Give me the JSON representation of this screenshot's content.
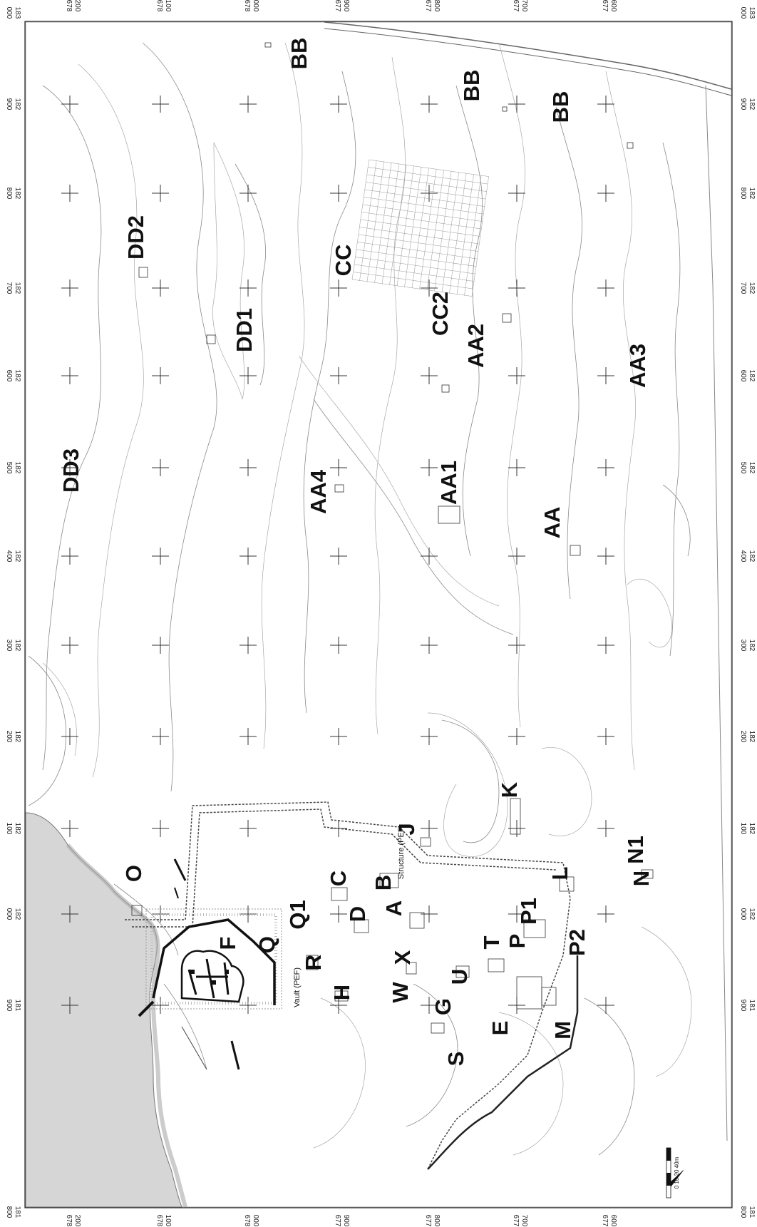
{
  "map": {
    "sheet": "Site plan (rotated)",
    "colors": {
      "sea": "#d6d6d6",
      "contour": "#8a8a8a",
      "wall": "#111111",
      "frame": "#222222"
    },
    "left_ticks": [
      {
        "a": "678",
        "b": "200"
      },
      {
        "a": "678",
        "b": "100"
      },
      {
        "a": "678",
        "b": "000"
      },
      {
        "a": "677",
        "b": "900"
      },
      {
        "a": "677",
        "b": "800"
      },
      {
        "a": "677",
        "b": "700"
      },
      {
        "a": "677",
        "b": "600"
      }
    ],
    "top_ticks": [
      "000\n183",
      "900\n182",
      "800\n182",
      "700\n182",
      "600\n182",
      "500\n182",
      "400\n182",
      "300\n182",
      "200\n182",
      "100\n182",
      "000\n182",
      "900\n181",
      "800\n181"
    ],
    "top_tick_lines": [
      {
        "a": "000",
        "b": "183"
      },
      {
        "a": "900",
        "b": "182"
      },
      {
        "a": "800",
        "b": "182"
      },
      {
        "a": "700",
        "b": "182"
      },
      {
        "a": "600",
        "b": "182"
      },
      {
        "a": "500",
        "b": "182"
      },
      {
        "a": "400",
        "b": "182"
      },
      {
        "a": "300",
        "b": "182"
      },
      {
        "a": "200",
        "b": "182"
      },
      {
        "a": "100",
        "b": "182"
      },
      {
        "a": "000",
        "b": "182"
      },
      {
        "a": "900",
        "b": "181"
      },
      {
        "a": "800",
        "b": "181"
      }
    ],
    "area_labels": {
      "BB_a": "BB",
      "BB_b": "BB",
      "BB_c": "BB",
      "DD2": "DD2",
      "DD1": "DD1",
      "DD3": "DD3",
      "CC": "CC",
      "CC2": "CC2",
      "AA2": "AA2",
      "AA3": "AA3",
      "AA4": "AA4",
      "AA1": "AA1",
      "AA": "AA",
      "K": "K",
      "J": "J",
      "L": "L",
      "N1": "N1",
      "N": "N",
      "O": "O",
      "C": "C",
      "B": "B",
      "A": "A",
      "D": "D",
      "Q1": "Q1",
      "F": "F",
      "Q": "Q",
      "R": "R",
      "H": "H",
      "P1": "P1",
      "P": "P",
      "P2": "P2",
      "T": "T",
      "X": "X",
      "W": "W",
      "U": "U",
      "G": "G",
      "E": "E",
      "M": "M",
      "S": "S"
    },
    "small_labels": {
      "structure": "Structure (PEF)",
      "vault": "Vault (PEF)",
      "scale": "0 10 20 40m"
    }
  }
}
